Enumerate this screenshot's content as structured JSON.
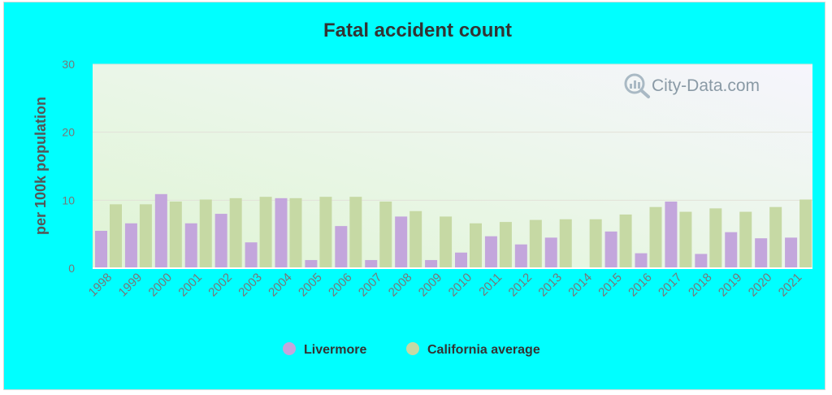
{
  "chart_data": {
    "type": "bar",
    "title": "Fatal accident count",
    "ylabel": "per 100k population",
    "xlabel": "",
    "ylim": [
      0,
      30
    ],
    "yticks": [
      0,
      10,
      20,
      30
    ],
    "grid": true,
    "legend_position": "bottom",
    "categories": [
      "1998",
      "1999",
      "2000",
      "2001",
      "2002",
      "2003",
      "2004",
      "2005",
      "2006",
      "2007",
      "2008",
      "2009",
      "2010",
      "2011",
      "2012",
      "2013",
      "2014",
      "2015",
      "2016",
      "2017",
      "2018",
      "2019",
      "2020",
      "2021"
    ],
    "series": [
      {
        "name": "Livermore",
        "color": "#c3a6dc",
        "values": [
          5.5,
          6.6,
          10.9,
          6.6,
          8.0,
          3.8,
          10.3,
          1.2,
          6.2,
          1.2,
          7.6,
          1.2,
          2.3,
          4.7,
          3.5,
          4.5,
          0,
          5.4,
          2.2,
          9.8,
          2.1,
          5.3,
          4.4,
          4.5
        ]
      },
      {
        "name": "California average",
        "color": "#c6d9a4",
        "values": [
          9.4,
          9.4,
          9.8,
          10.1,
          10.3,
          10.5,
          10.3,
          10.5,
          10.5,
          9.8,
          8.4,
          7.6,
          6.6,
          6.8,
          7.1,
          7.2,
          7.2,
          7.9,
          9.0,
          8.3,
          8.8,
          8.3,
          9.0,
          10.1
        ]
      }
    ]
  },
  "watermark": {
    "text": "City-Data.com",
    "icon": "magnifier-chart-icon"
  },
  "colors": {
    "frame_background": "#00ffff",
    "plot_background_top": "#f5f5fc",
    "plot_background_bottom": "#e6f5df"
  }
}
